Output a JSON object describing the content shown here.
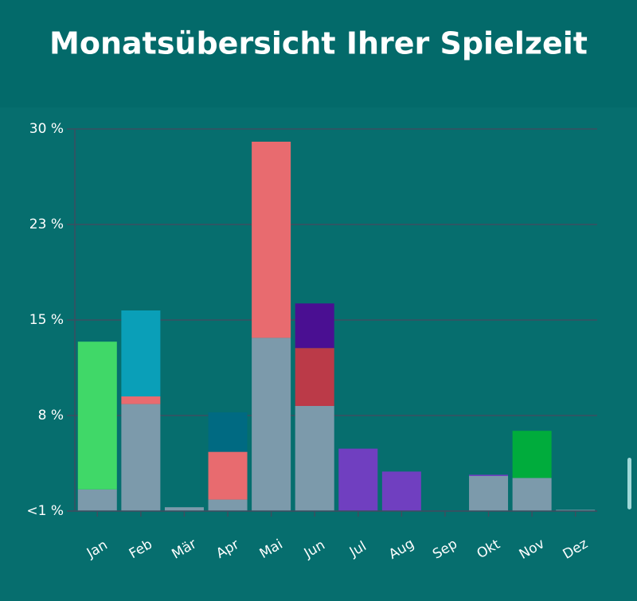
{
  "chart_data": {
    "type": "stacked-bar",
    "title": "Monatsübersicht Ihrer Spielzeit",
    "categories": [
      "Jan",
      "Feb",
      "Mär",
      "Apr",
      "Mai",
      "Jun",
      "Jul",
      "Aug",
      "Sep",
      "Okt",
      "Nov",
      "Dez"
    ],
    "series": [
      {
        "color": "#7c9aab",
        "values": [
          1.7,
          8.4,
          0.3,
          0.9,
          13.6,
          8.25,
          null,
          null,
          null,
          2.75,
          2.6,
          0.1
        ]
      },
      {
        "color": "#40d868",
        "values": [
          11.6,
          null,
          null,
          null,
          null,
          null,
          null,
          null,
          null,
          null,
          null,
          null
        ]
      },
      {
        "color": "#00ac3c",
        "values": [
          null,
          null,
          null,
          null,
          null,
          null,
          null,
          null,
          null,
          null,
          3.7,
          null
        ]
      },
      {
        "color": "#e86b6f",
        "values": [
          null,
          0.6,
          null,
          3.75,
          15.4,
          null,
          null,
          null,
          null,
          null,
          null,
          null
        ]
      },
      {
        "color": "#bb3a48",
        "values": [
          null,
          null,
          null,
          null,
          null,
          4.55,
          null,
          null,
          null,
          null,
          null,
          null
        ]
      },
      {
        "color": "#0a9fb8",
        "values": [
          null,
          6.75,
          null,
          null,
          null,
          null,
          null,
          null,
          null,
          null,
          null,
          null
        ]
      },
      {
        "color": "#006a82",
        "values": [
          null,
          null,
          null,
          3.1,
          null,
          null,
          null,
          null,
          null,
          null,
          null,
          null
        ]
      },
      {
        "color": "#4a0f92",
        "values": [
          null,
          null,
          null,
          null,
          null,
          3.5,
          null,
          null,
          null,
          null,
          null,
          null
        ]
      },
      {
        "color": "#703fc0",
        "values": [
          null,
          null,
          null,
          null,
          null,
          null,
          4.9,
          3.1,
          null,
          0.1,
          null,
          null
        ]
      }
    ],
    "ylim": [
      0,
      30
    ],
    "yticks": [
      {
        "value": 0,
        "label": "<1 %"
      },
      {
        "value": 7.5,
        "label": "8 %"
      },
      {
        "value": 15,
        "label": "15 %"
      },
      {
        "value": 22.5,
        "label": "23 %"
      },
      {
        "value": 30,
        "label": "30 %"
      }
    ],
    "grid": true
  }
}
